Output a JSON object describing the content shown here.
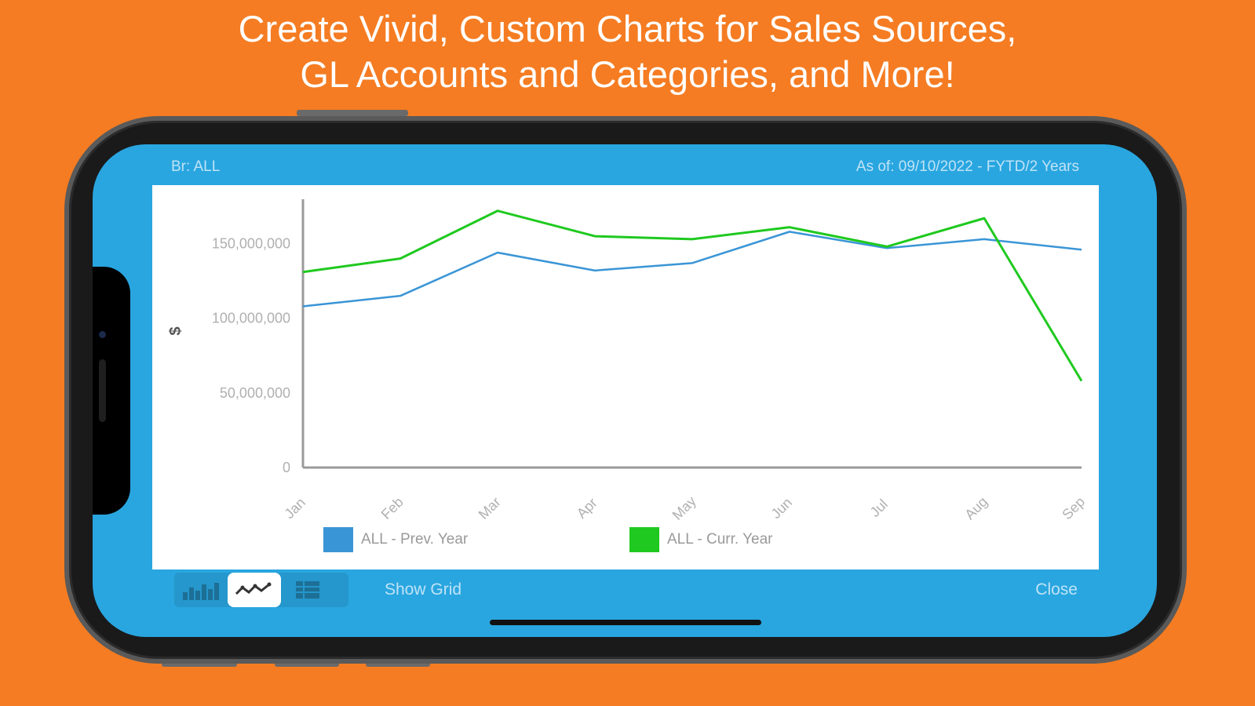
{
  "headline": {
    "line1": "Create Vivid, Custom Charts for Sales Sources,",
    "line2": "GL Accounts and Categories, and More!"
  },
  "status": {
    "branch": "Br:  ALL",
    "as_of": "As of: 09/10/2022 - FYTD/2 Years"
  },
  "toolbar": {
    "tools": [
      {
        "icon": "bar-chart-icon",
        "active": false
      },
      {
        "icon": "line-chart-icon",
        "active": true
      },
      {
        "icon": "table-icon",
        "active": false
      }
    ],
    "show_grid": "Show Grid",
    "close": "Close"
  },
  "colors": {
    "background": "#f57c22",
    "screen": "#29a6e0",
    "prev_year": "#3a95d6",
    "cur_year": "#1fc91f"
  },
  "chart_data": {
    "type": "line",
    "ylabel": "$",
    "categories": [
      "Jan",
      "Feb",
      "Mar",
      "Apr",
      "May",
      "Jun",
      "Jul",
      "Aug",
      "Sep"
    ],
    "ylim": [
      0,
      185000000
    ],
    "yticks": [
      0,
      50000000,
      100000000,
      150000000
    ],
    "ytick_labels": [
      "0",
      "50,000,000",
      "100,000,000",
      "150,000,000"
    ],
    "grid": false,
    "legend_position": "bottom",
    "series": [
      {
        "name": "ALL - Prev. Year",
        "color": "#3a95d6",
        "values": [
          108000000,
          115000000,
          144000000,
          132000000,
          137000000,
          158000000,
          147000000,
          153000000,
          146000000
        ]
      },
      {
        "name": "ALL - Curr. Year",
        "color": "#1fc91f",
        "values": [
          131000000,
          140000000,
          172000000,
          155000000,
          153000000,
          161000000,
          148000000,
          167000000,
          58000000
        ]
      }
    ]
  }
}
